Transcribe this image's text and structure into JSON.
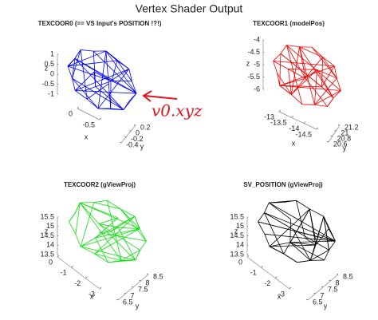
{
  "title": "Vertex Shader Output",
  "annotation": "v0.xyz",
  "panels": [
    {
      "title": "TEXCOOR0 (== VS Input's POSITION !?!)",
      "color": "#0000ee",
      "xlabel": "x",
      "ylabel": "y",
      "zlabel": "z",
      "zticks": [
        1,
        0.5,
        0,
        -0.5,
        -1
      ],
      "xticks": [
        -0.5,
        0
      ],
      "yticks": [
        0.2,
        0,
        -0.2,
        -0.4
      ]
    },
    {
      "title": "TEXCOOR1 (modelPos)",
      "color": "#ee0000",
      "xlabel": "x",
      "ylabel": "y",
      "zlabel": "z",
      "zticks": [
        -4,
        -4.5,
        -5,
        -5.5,
        -6
      ],
      "xticks": [
        -14.5,
        -14,
        -13.5,
        -13
      ],
      "yticks": [
        21.2,
        21,
        20.8,
        20.6
      ]
    },
    {
      "title": "TEXCOOR2 (gViewProj)",
      "color": "#11dd11",
      "xlabel": "x",
      "ylabel": "y",
      "zlabel": "z",
      "zticks": [
        15.5,
        15,
        14.5,
        14,
        13.5
      ],
      "xticks": [
        -3,
        -2,
        -1,
        0
      ],
      "yticks": [
        8.5,
        8,
        7.5,
        7,
        6.5
      ]
    },
    {
      "title": "SV_POSITION (gViewProj)",
      "color": "#000000",
      "xlabel": "x",
      "ylabel": "y",
      "zlabel": "z",
      "zticks": [
        15.5,
        15,
        14.5,
        14,
        13.5
      ],
      "xticks": [
        -3,
        -2,
        -1,
        0
      ],
      "yticks": [
        8.5,
        8,
        7.5,
        7,
        6.5
      ]
    }
  ]
}
